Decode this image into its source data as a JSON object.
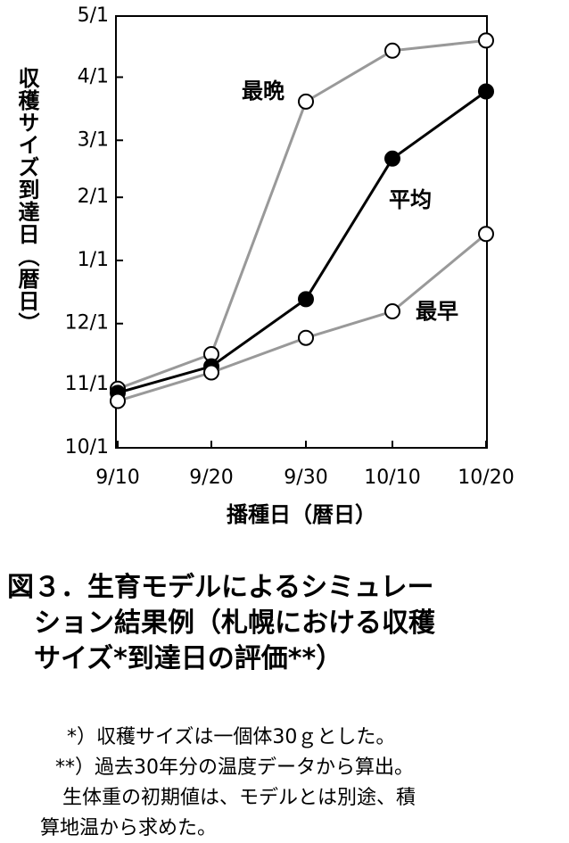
{
  "chart_data": {
    "type": "line",
    "y_label": "収穫サイズ到達日（暦日）",
    "x_label": "播種日（暦日）",
    "categories": [
      "9/10",
      "9/20",
      "9/30",
      "10/10",
      "10/20"
    ],
    "ylim": [
      0,
      212
    ],
    "yticks": [
      {
        "value": 0,
        "label": "10/1"
      },
      {
        "value": 31,
        "label": "11/1"
      },
      {
        "value": 61,
        "label": "12/1"
      },
      {
        "value": 92,
        "label": "1/1"
      },
      {
        "value": 123,
        "label": "2/1"
      },
      {
        "value": 151,
        "label": "3/1"
      },
      {
        "value": 182,
        "label": "4/1"
      },
      {
        "value": 212,
        "label": "5/1"
      }
    ],
    "series": [
      {
        "name": "最晩",
        "color": "#999999",
        "fill": "#ffffff",
        "values": [
          29,
          46,
          170,
          195,
          200
        ]
      },
      {
        "name": "平均",
        "color": "#000000",
        "fill": "#000000",
        "values": [
          27,
          40,
          73,
          142,
          175
        ]
      },
      {
        "name": "最早",
        "color": "#999999",
        "fill": "#ffffff",
        "values": [
          23,
          37,
          54,
          67,
          105
        ]
      }
    ],
    "caption": [
      "図３．生育モデルによるシミュレー",
      "ション結果例（札幌における収穫",
      "サイズ*到達日の評価**）"
    ],
    "notes": [
      "*）収穫サイズは一個体30ｇとした。",
      "**）過去30年分の温度データから算出。",
      "生体重の初期値は、モデルとは別途、積",
      "算地温から求めた。"
    ]
  }
}
